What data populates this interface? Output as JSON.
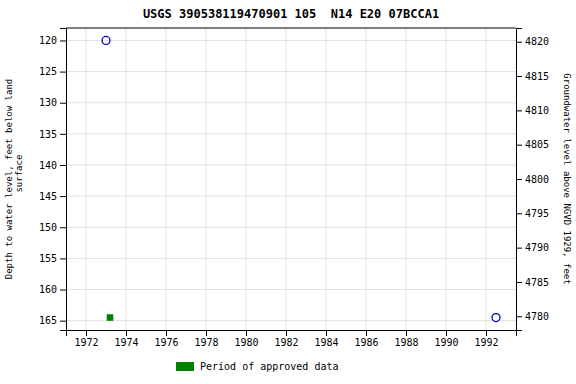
{
  "chart_data": {
    "type": "scatter",
    "title": "USGS 390538119470901 105  N14 E20 07BCCA1",
    "ylabel": "Depth to water level, feet below land\n  surface",
    "y2label": "Groundwater level above NGVD 1929, feet",
    "xlim": [
      1971.0,
      1993.5
    ],
    "xticks": [
      1972,
      1974,
      1976,
      1978,
      1980,
      1982,
      1984,
      1986,
      1988,
      1990,
      1992
    ],
    "ylim": [
      166.5,
      118.0
    ],
    "yticks": [
      120,
      125,
      130,
      135,
      140,
      145,
      150,
      155,
      160,
      165
    ],
    "y2lim": [
      4778.0,
      4822.0
    ],
    "y2ticks": [
      4820,
      4815,
      4810,
      4805,
      4800,
      4795,
      4790,
      4785,
      4780
    ],
    "grid": true,
    "legend": "bottom",
    "series": [
      {
        "color": "#0000cc",
        "marker": "circle-open",
        "x": [
          1973.0
        ],
        "values": [
          120.0
        ]
      },
      {
        "name": "Period of approved data",
        "color": "#008000",
        "marker": "square",
        "x": [
          1973.2
        ],
        "values": [
          164.5
        ]
      },
      {
        "color": "#0000cc",
        "marker": "circle-open",
        "x": [
          1992.5
        ],
        "values": [
          164.5
        ]
      }
    ]
  }
}
